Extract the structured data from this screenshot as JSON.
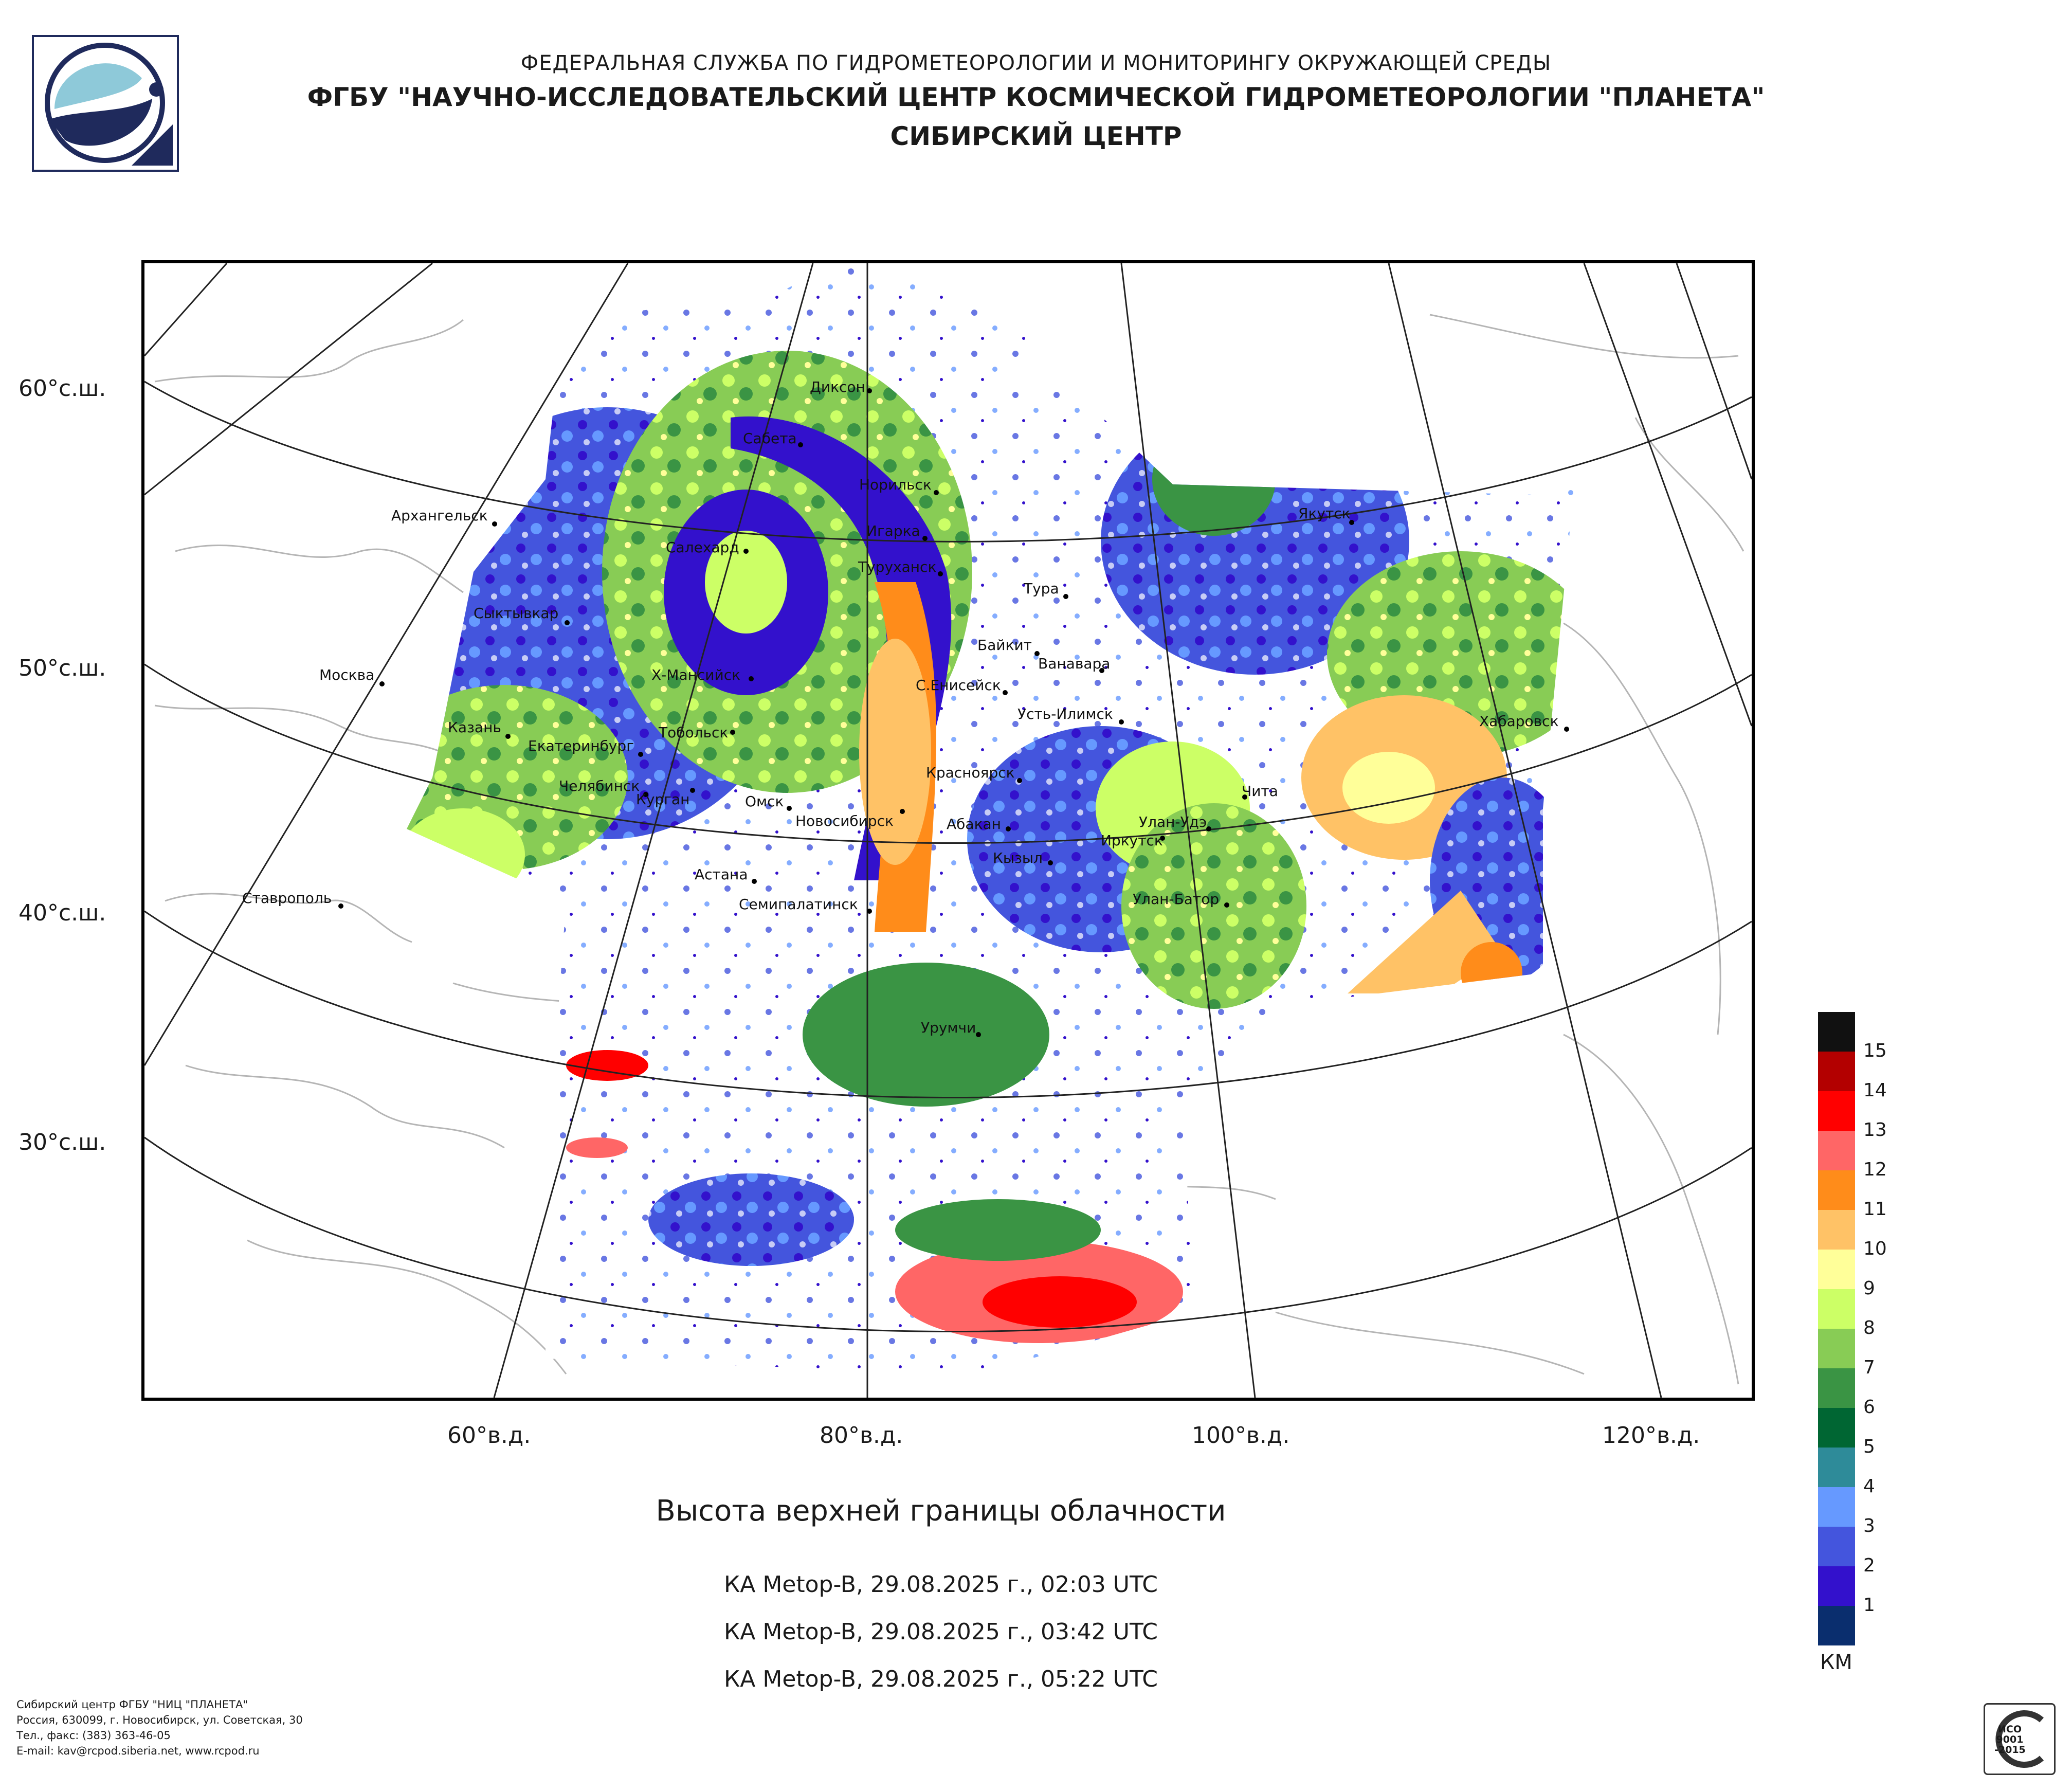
{
  "header": {
    "agency": "ФЕДЕРАЛЬНАЯ СЛУЖБА ПО ГИДРОМЕТЕОРОЛОГИИ И МОНИТОРИНГУ ОКРУЖАЮЩЕЙ СРЕДЫ",
    "institute": "ФГБУ \"НАУЧНО-ИССЛЕДОВАТЕЛЬСКИЙ ЦЕНТР КОСМИЧЕСКОЙ ГИДРОМЕТЕОРОЛОГИИ \"ПЛАНЕТА\"",
    "center": "СИБИРСКИЙ ЦЕНТР"
  },
  "map": {
    "lat_labels": [
      "60°с.ш.",
      "50°с.ш.",
      "40°с.ш.",
      "30°с.ш."
    ],
    "lon_labels": [
      "60°в.д.",
      "80°в.д.",
      "100°в.д.",
      "120°в.д."
    ],
    "cities": [
      "Архангельск",
      "Сыктывкар",
      "Москва",
      "Казань",
      "Екатеринбург",
      "Челябинск",
      "Курган",
      "Тобольск",
      "Х-Мансийск",
      "Салехард",
      "Сабета",
      "Диксон",
      "Норильск",
      "Игарка",
      "Туруханск",
      "Тура",
      "Байкит",
      "Ванавара",
      "С.Енисейск",
      "Усть-Илимск",
      "Красноярск",
      "Омск",
      "Новосибирск",
      "Абакан",
      "Кызыл",
      "Иркутск",
      "Улан-Удэ",
      "Чита",
      "Улан-Батор",
      "Якутск",
      "Хабаровск",
      "Астана",
      "Семипалатинск",
      "Ставрополь",
      "Урумчи"
    ]
  },
  "product": {
    "title": "Высота верхней границы облачности",
    "passes": [
      "КА Metop-B, 29.08.2025 г., 02:03 UTC",
      "КА Metop-B, 29.08.2025 г., 03:42 UTC",
      "КА Metop-B, 29.08.2025 г., 05:22 UTC"
    ]
  },
  "legend": {
    "unit": "КМ",
    "labels": [
      "15",
      "14",
      "13",
      "12",
      "11",
      "10",
      "9",
      "8",
      "7",
      "6",
      "5",
      "4",
      "3",
      "2",
      "1"
    ],
    "colors": [
      "#111111",
      "#b30000",
      "#ff0000",
      "#ff6666",
      "#ff8c1a",
      "#ffc266",
      "#ffff99",
      "#ccff66",
      "#88cc55",
      "#3a9444",
      "#006633",
      "#2e8b99",
      "#6699ff",
      "#4455dd",
      "#3311cc",
      "#0a2e6e"
    ]
  },
  "footer": {
    "line1": "Сибирский центр ФГБУ \"НИЦ \"ПЛАНЕТА\"",
    "line2": "Россия, 630099, г. Новосибирск, ул. Советская, 30",
    "line3": "Тел., факс: (383) 363-46-05",
    "line4": "E-mail: kav@rcpod.siberia.net, www.rcpod.ru"
  },
  "cert": {
    "line1": "ИСО",
    "line2": "9001",
    "line3": "-2015"
  },
  "colors": {
    "brand_blue": "#1f2a5c",
    "logo_cyan": "#8ec9d9"
  }
}
